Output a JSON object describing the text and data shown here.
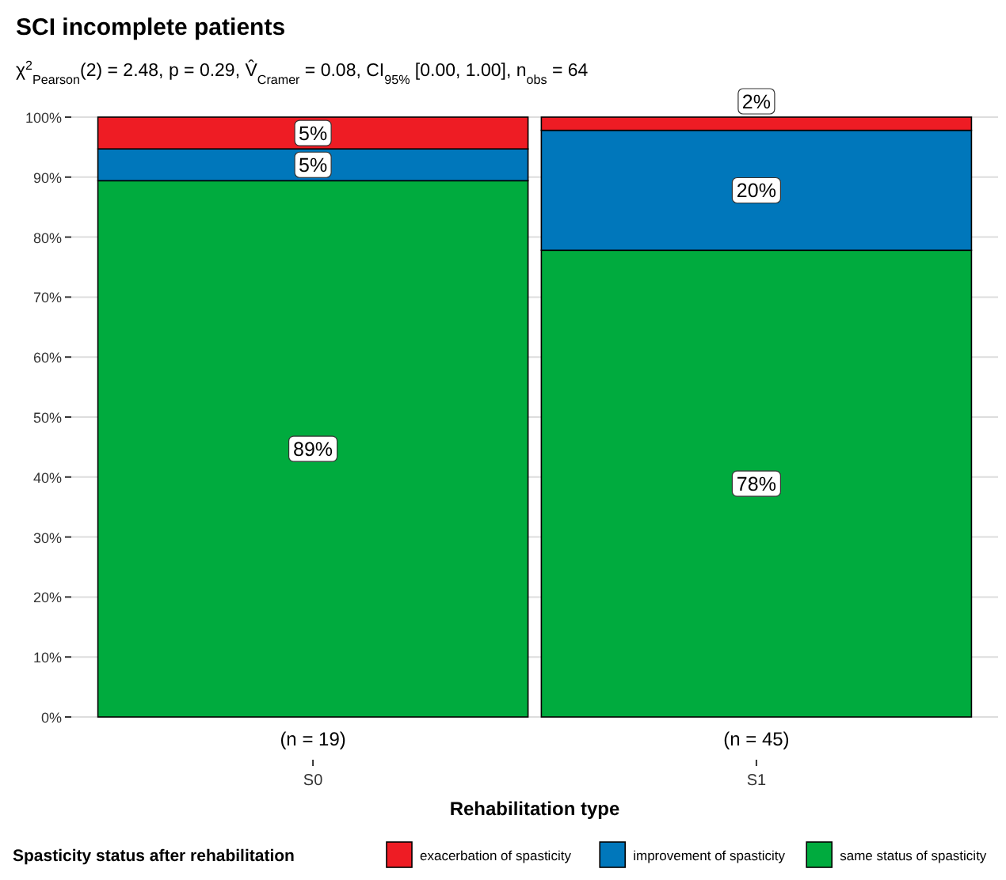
{
  "chart_data": {
    "type": "bar",
    "title": "SCI incomplete patients",
    "subtitle": "χ$^{2}$$_{Pearson}$(2) = 2.48, p = 0.29, V̂$_{Cramer}$ = 0.08, CI$_{95%}$ [0.00, 1.00], n$_{obs}$ = 64",
    "xlabel": "Rehabilitation type",
    "legend_title": "Spasticity status after rehabilitation",
    "categories": [
      "S0",
      "S1"
    ],
    "stacked": true,
    "series": [
      {
        "name": "same status of spasticity",
        "color": "#00ab3e",
        "values": [
          89.4,
          77.8
        ],
        "value_labels": [
          "89%",
          "78%"
        ]
      },
      {
        "name": "improvement of spasticity",
        "color": "#0077bb",
        "values": [
          5.3,
          20
        ],
        "value_labels": [
          "5%",
          "20%"
        ]
      },
      {
        "name": "exacerbation of spasticity",
        "color": "#ee1c24",
        "values": [
          5.3,
          2.2
        ],
        "value_labels": [
          "5%",
          "2%"
        ]
      }
    ],
    "ylim": [
      0,
      100
    ],
    "yticks": [
      {
        "value": 0,
        "label": "0%"
      },
      {
        "value": 10,
        "label": "10%"
      },
      {
        "value": 20,
        "label": "20%"
      },
      {
        "value": 30,
        "label": "30%"
      },
      {
        "value": 40,
        "label": "40%"
      },
      {
        "value": 50,
        "label": "50%"
      },
      {
        "value": 60,
        "label": "60%"
      },
      {
        "value": 70,
        "label": "70%"
      },
      {
        "value": 80,
        "label": "80%"
      },
      {
        "value": 90,
        "label": "90%"
      },
      {
        "value": 100,
        "label": "100%"
      }
    ],
    "grid": "y",
    "legend": "bottom",
    "annotations": [
      {
        "text": "(n = 19)",
        "x": "S0"
      },
      {
        "text": "(n = 45)",
        "x": "S1"
      }
    ]
  }
}
